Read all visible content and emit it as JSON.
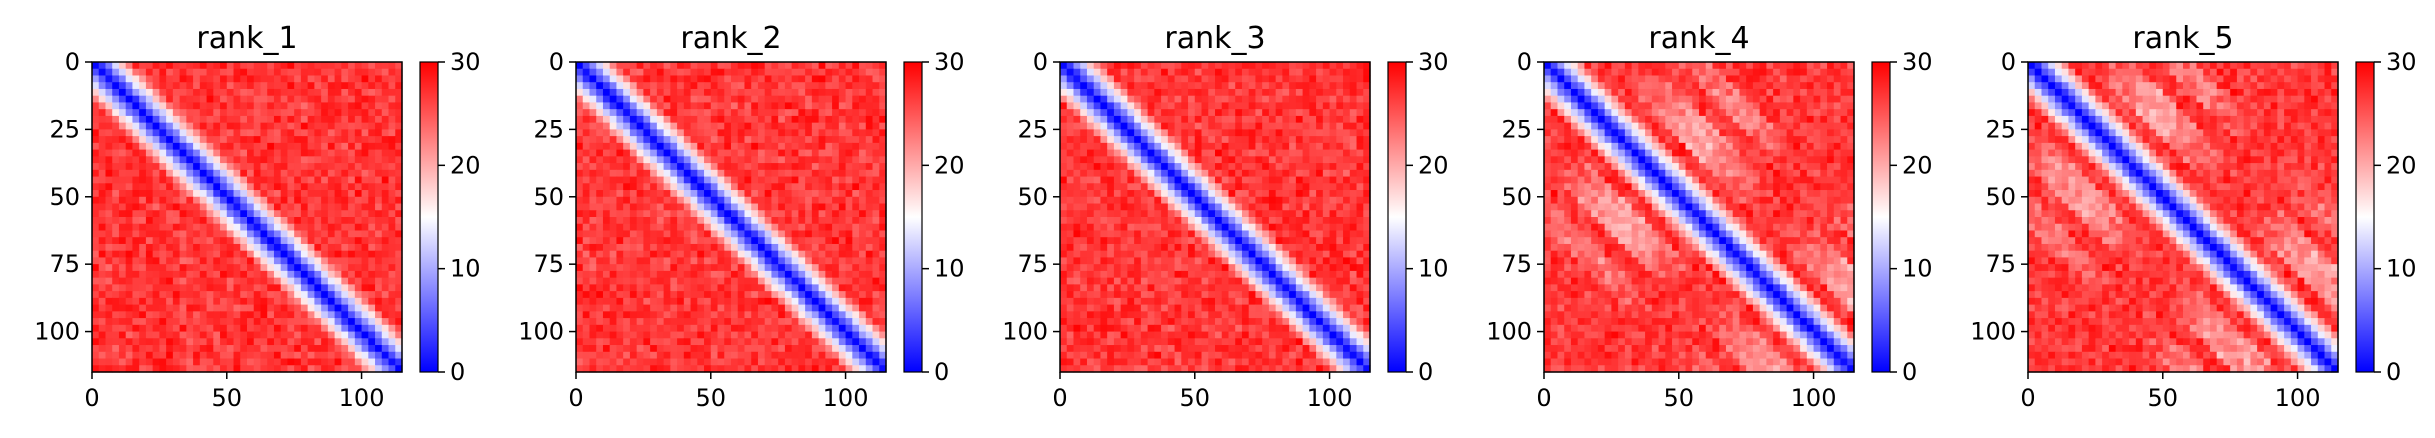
{
  "chart_data": [
    {
      "type": "heatmap",
      "title": "rank_1",
      "size": 115,
      "colormap": "bwr",
      "xticks": [
        0,
        50,
        100
      ],
      "yticks": [
        0,
        25,
        50,
        75,
        100
      ],
      "colorbar_range": [
        0,
        30
      ],
      "colorbar_ticks": [
        0,
        10,
        20,
        30
      ],
      "diagonal_band": "blue",
      "off_diagonal_stripes": false
    },
    {
      "type": "heatmap",
      "title": "rank_2",
      "size": 115,
      "colormap": "bwr",
      "xticks": [
        0,
        50,
        100
      ],
      "yticks": [
        0,
        25,
        50,
        75,
        100
      ],
      "colorbar_range": [
        0,
        30
      ],
      "colorbar_ticks": [
        0,
        10,
        20,
        30
      ],
      "diagonal_band": "blue",
      "off_diagonal_stripes": false
    },
    {
      "type": "heatmap",
      "title": "rank_3",
      "size": 115,
      "colormap": "bwr",
      "xticks": [
        0,
        50,
        100
      ],
      "yticks": [
        0,
        25,
        50,
        75,
        100
      ],
      "colorbar_range": [
        0,
        30
      ],
      "colorbar_ticks": [
        0,
        10,
        20,
        30
      ],
      "diagonal_band": "blue",
      "off_diagonal_stripes": false
    },
    {
      "type": "heatmap",
      "title": "rank_4",
      "size": 115,
      "colormap": "bwr",
      "xticks": [
        0,
        50,
        100
      ],
      "yticks": [
        0,
        25,
        50,
        75,
        100
      ],
      "colorbar_range": [
        0,
        30
      ],
      "colorbar_ticks": [
        0,
        10,
        20,
        30
      ],
      "diagonal_band": "blue",
      "off_diagonal_stripes": true
    },
    {
      "type": "heatmap",
      "title": "rank_5",
      "size": 115,
      "colormap": "bwr",
      "xticks": [
        0,
        50,
        100
      ],
      "yticks": [
        0,
        25,
        50,
        75,
        100
      ],
      "colorbar_range": [
        0,
        30
      ],
      "colorbar_ticks": [
        0,
        10,
        20,
        30
      ],
      "diagonal_band": "blue",
      "off_diagonal_stripes": true
    }
  ]
}
